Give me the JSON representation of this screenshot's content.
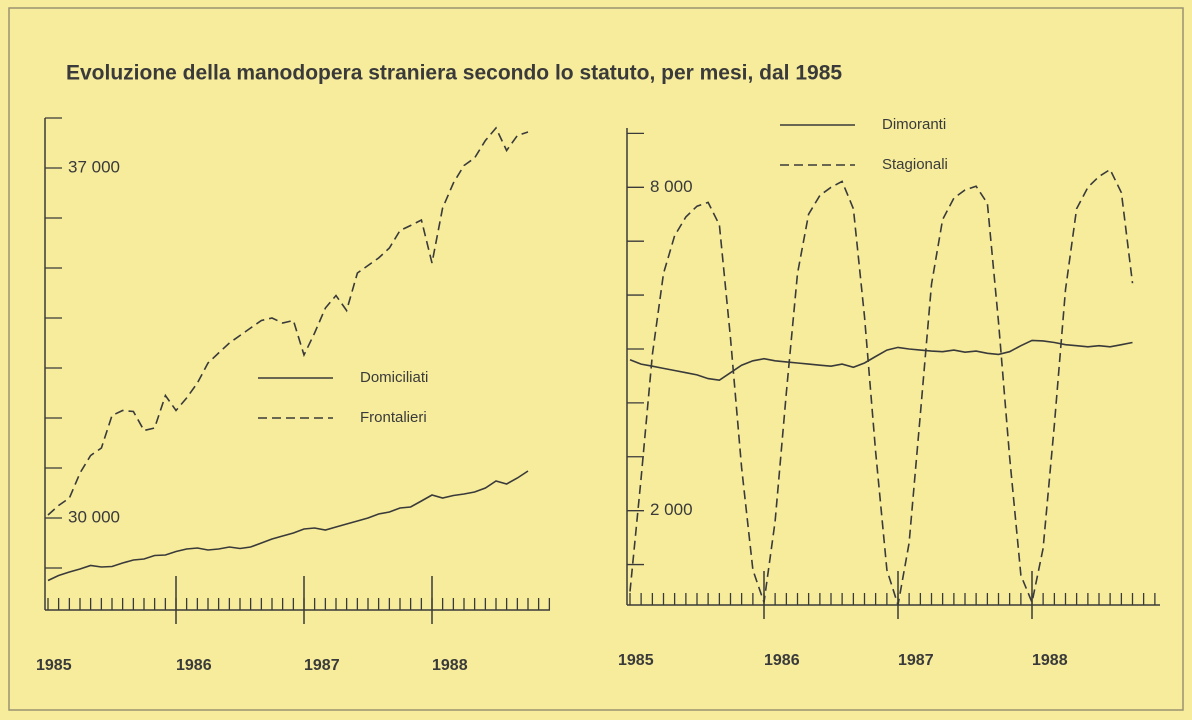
{
  "title": "Evoluzione della manodopera straniera secondo lo statuto, per mesi, dal 1985",
  "chart_data": [
    {
      "type": "line",
      "x": [
        1985,
        1985.083,
        1985.167,
        1985.25,
        1985.333,
        1985.417,
        1985.5,
        1985.583,
        1985.667,
        1985.75,
        1985.833,
        1985.917,
        1986,
        1986.083,
        1986.167,
        1986.25,
        1986.333,
        1986.417,
        1986.5,
        1986.583,
        1986.667,
        1986.75,
        1986.833,
        1986.917,
        1987,
        1987.083,
        1987.167,
        1987.25,
        1987.333,
        1987.417,
        1987.5,
        1987.583,
        1987.667,
        1987.75,
        1987.833,
        1987.917,
        1988,
        1988.083,
        1988.167,
        1988.25,
        1988.333,
        1988.417,
        1988.5,
        1988.583,
        1988.667,
        1988.75,
        1988.833,
        1988.917
      ],
      "xlim": [
        1985,
        1989
      ],
      "xticks": [
        1985,
        1986,
        1987,
        1988
      ],
      "ylim": [
        28160,
        38000
      ],
      "yticks": [
        {
          "value": 30000,
          "label": "30 000"
        },
        {
          "value": 37000,
          "label": "37 000"
        }
      ],
      "minor_yticks": [
        29000,
        31000,
        32000,
        33000,
        34000,
        35000,
        36000,
        38000
      ],
      "legend": "center right",
      "series": [
        {
          "name": "Domiciliati",
          "color": "#3a3a3a",
          "style": "solid",
          "values": [
            28750,
            28850,
            28920,
            28980,
            29050,
            29020,
            29030,
            29100,
            29160,
            29180,
            29250,
            29260,
            29330,
            29380,
            29400,
            29360,
            29380,
            29420,
            29390,
            29420,
            29500,
            29580,
            29640,
            29700,
            29780,
            29800,
            29760,
            29820,
            29880,
            29940,
            30000,
            30080,
            30120,
            30200,
            30220,
            30340,
            30460,
            30400,
            30450,
            30480,
            30520,
            30600,
            30740,
            30680,
            30800,
            30940,
            null,
            null
          ]
        },
        {
          "name": "Frontalieri",
          "color": "#3a3a3a",
          "style": "dashed",
          "values": [
            30060,
            30250,
            30400,
            30900,
            31250,
            31400,
            32050,
            32150,
            32130,
            31750,
            31800,
            32450,
            32150,
            32400,
            32700,
            33100,
            33300,
            33500,
            33650,
            33800,
            33950,
            34000,
            33900,
            33950,
            33260,
            33700,
            34200,
            34450,
            34150,
            34900,
            35050,
            35200,
            35400,
            35750,
            35850,
            35960,
            35100,
            36200,
            36700,
            37050,
            37200,
            37550,
            37800,
            37350,
            37650,
            37720,
            null,
            null
          ]
        }
      ]
    },
    {
      "type": "line",
      "x": [
        1985,
        1985.083,
        1985.167,
        1985.25,
        1985.333,
        1985.417,
        1985.5,
        1985.583,
        1985.667,
        1985.75,
        1985.833,
        1985.917,
        1986,
        1986.083,
        1986.167,
        1986.25,
        1986.333,
        1986.417,
        1986.5,
        1986.583,
        1986.667,
        1986.75,
        1986.833,
        1986.917,
        1987,
        1987.083,
        1987.167,
        1987.25,
        1987.333,
        1987.417,
        1987.5,
        1987.583,
        1987.667,
        1987.75,
        1987.833,
        1987.917,
        1988,
        1988.083,
        1988.167,
        1988.25,
        1988.333,
        1988.417,
        1988.5,
        1988.583,
        1988.667,
        1988.75,
        1988.833,
        1988.917
      ],
      "xlim": [
        1985,
        1989
      ],
      "xticks": [
        1985,
        1986,
        1987,
        1988
      ],
      "ylim": [
        250,
        9100
      ],
      "yticks": [
        {
          "value": 2000,
          "label": "2 000"
        },
        {
          "value": 8000,
          "label": "8 000"
        }
      ],
      "minor_yticks": [
        1000,
        3000,
        4000,
        5000,
        6000,
        7000,
        9000
      ],
      "legend": "upper center",
      "series": [
        {
          "name": "Dimoranti",
          "color": "#3a3a3a",
          "style": "solid",
          "values": [
            4800,
            4720,
            4680,
            4640,
            4600,
            4560,
            4520,
            4450,
            4420,
            4560,
            4700,
            4780,
            4820,
            4780,
            4760,
            4740,
            4720,
            4700,
            4680,
            4720,
            4660,
            4740,
            4860,
            4980,
            5030,
            5000,
            4980,
            4960,
            4950,
            4980,
            4940,
            4960,
            4920,
            4900,
            4950,
            5060,
            5160,
            5150,
            5120,
            5080,
            5060,
            5040,
            5060,
            5040,
            5080,
            5120,
            null,
            null
          ]
        },
        {
          "name": "Stagionali",
          "color": "#3a3a3a",
          "style": "dashed",
          "values": [
            500,
            2600,
            4900,
            6400,
            7100,
            7450,
            7650,
            7720,
            7300,
            5200,
            2800,
            900,
            300,
            1800,
            4200,
            6400,
            7500,
            7850,
            8000,
            8110,
            7600,
            5600,
            3100,
            900,
            250,
            1400,
            3800,
            6200,
            7400,
            7800,
            7950,
            8020,
            7700,
            5500,
            3000,
            800,
            300,
            1300,
            3600,
            6100,
            7600,
            8000,
            8200,
            8330,
            7900,
            6220,
            null,
            null
          ]
        }
      ]
    }
  ]
}
